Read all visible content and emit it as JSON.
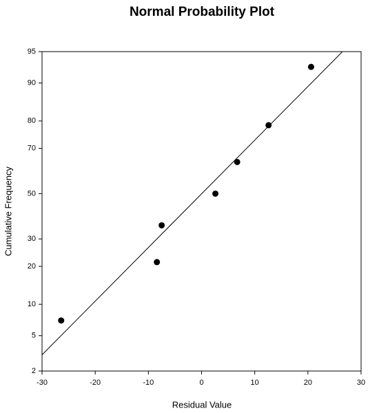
{
  "chart_data": {
    "type": "scatter",
    "title": "Normal Probability Plot",
    "x_label": "Residual Value",
    "y_label": "Cumulative Frequency",
    "y_scale": "probability",
    "xlim": [
      -30,
      30
    ],
    "ylim": [
      2,
      95
    ],
    "xticks": [
      -30,
      -20,
      -10,
      0,
      10,
      20,
      30
    ],
    "yticks": [
      2,
      5,
      10,
      20,
      30,
      50,
      70,
      80,
      90,
      95
    ],
    "series": [
      {
        "color": "#000000",
        "x": [
          -26.4,
          -8.4,
          -7.5,
          2.6,
          6.7,
          12.6,
          20.6
        ],
        "values": [
          7.1,
          21.4,
          35.7,
          50,
          64.3,
          78.6,
          92.9
        ]
      }
    ],
    "fit_line": {
      "color": "#000000",
      "x": [
        -30,
        26.5
      ],
      "values": [
        3.1,
        95
      ]
    }
  }
}
